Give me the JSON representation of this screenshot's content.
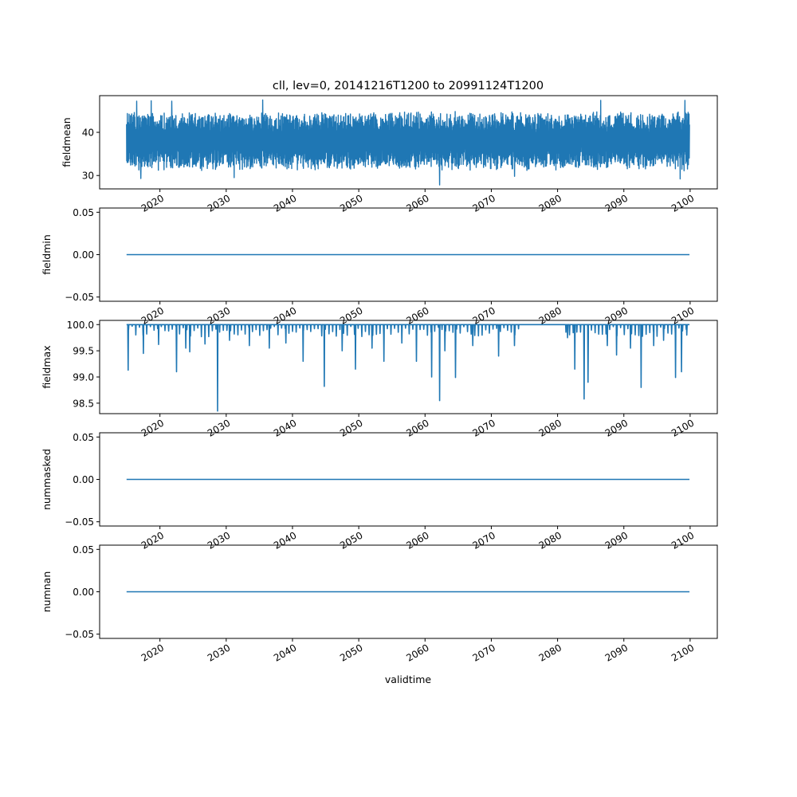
{
  "figure": {
    "title": "cll, lev=0, 20141216T1200 to 20991124T1200",
    "xlabel": "validtime"
  },
  "chart_data": {
    "type": "line",
    "title": "cll, lev=0, 20141216T1200 to 20991124T1200",
    "xlabel": "validtime",
    "x_range": [
      "2014-12-16T12:00",
      "2099-11-24T12:00"
    ],
    "x_axis_lim": [
      2010.9,
      2104.1
    ],
    "x_tick_labels": [
      "2020",
      "2030",
      "2040",
      "2050",
      "2060",
      "2070",
      "2080",
      "2090",
      "2100"
    ],
    "x_tick_values": [
      2020,
      2030,
      2040,
      2050,
      2060,
      2070,
      2080,
      2090,
      2100
    ],
    "color": "#1f77b4",
    "grid": false,
    "panels": [
      {
        "name": "fieldmean",
        "ylabel": "fieldmean",
        "ylim": [
          26.9,
          48.5
        ],
        "yticks": [
          30,
          40
        ],
        "ytick_labels": [
          "30",
          "40"
        ],
        "series_kind": "noisy",
        "typical_range": [
          32,
          44
        ],
        "extremes": [
          {
            "x": 2016.5,
            "y": 47.2
          },
          {
            "x": 2018.7,
            "y": 47.3
          },
          {
            "x": 2021.8,
            "y": 47.2
          },
          {
            "x": 2035.5,
            "y": 47.5
          },
          {
            "x": 2086.5,
            "y": 47.4
          },
          {
            "x": 2099.2,
            "y": 47.4
          },
          {
            "x": 2017.1,
            "y": 29.3
          },
          {
            "x": 2031.2,
            "y": 29.5
          },
          {
            "x": 2062.2,
            "y": 27.8
          },
          {
            "x": 2073.5,
            "y": 29.8
          },
          {
            "x": 2098.5,
            "y": 29.2
          },
          {
            "x": 2099.6,
            "y": 31.5
          }
        ]
      },
      {
        "name": "fieldmin",
        "ylabel": "fieldmin",
        "ylim": [
          -0.055,
          0.055
        ],
        "yticks": [
          -0.05,
          0.0,
          0.05
        ],
        "ytick_labels": [
          "−0.05",
          "0.00",
          "0.05"
        ],
        "series_kind": "constant",
        "constant_value": 0.0
      },
      {
        "name": "fieldmax",
        "ylabel": "fieldmax",
        "ylim": [
          98.3,
          100.08
        ],
        "yticks": [
          98.5,
          99.0,
          99.5,
          100.0
        ],
        "ytick_labels": [
          "98.5",
          "99.0",
          "99.5",
          "100.0"
        ],
        "series_kind": "dips",
        "baseline": 100.0,
        "dips": [
          {
            "x": 2015.2,
            "y": 99.13
          },
          {
            "x": 2017.5,
            "y": 99.45
          },
          {
            "x": 2019.8,
            "y": 99.62
          },
          {
            "x": 2022.5,
            "y": 99.1
          },
          {
            "x": 2023.9,
            "y": 99.55
          },
          {
            "x": 2024.5,
            "y": 99.48
          },
          {
            "x": 2026.8,
            "y": 99.63
          },
          {
            "x": 2028.7,
            "y": 98.35
          },
          {
            "x": 2030.5,
            "y": 99.7
          },
          {
            "x": 2033.5,
            "y": 99.6
          },
          {
            "x": 2036.5,
            "y": 99.55
          },
          {
            "x": 2039.0,
            "y": 99.65
          },
          {
            "x": 2041.6,
            "y": 99.3
          },
          {
            "x": 2044.8,
            "y": 98.82
          },
          {
            "x": 2047.5,
            "y": 99.5
          },
          {
            "x": 2049.5,
            "y": 99.15
          },
          {
            "x": 2052.0,
            "y": 99.55
          },
          {
            "x": 2053.8,
            "y": 99.3
          },
          {
            "x": 2056.5,
            "y": 99.65
          },
          {
            "x": 2058.7,
            "y": 99.3
          },
          {
            "x": 2061.0,
            "y": 99.0
          },
          {
            "x": 2062.2,
            "y": 98.55
          },
          {
            "x": 2063.0,
            "y": 99.5
          },
          {
            "x": 2064.6,
            "y": 98.99
          },
          {
            "x": 2067.2,
            "y": 99.6
          },
          {
            "x": 2071.1,
            "y": 99.4
          },
          {
            "x": 2073.5,
            "y": 99.6
          },
          {
            "x": 2081.5,
            "y": 99.75
          },
          {
            "x": 2082.6,
            "y": 99.15
          },
          {
            "x": 2084.0,
            "y": 98.58
          },
          {
            "x": 2084.6,
            "y": 98.9
          },
          {
            "x": 2087.5,
            "y": 99.6
          },
          {
            "x": 2088.9,
            "y": 99.42
          },
          {
            "x": 2091.0,
            "y": 99.55
          },
          {
            "x": 2092.6,
            "y": 98.8
          },
          {
            "x": 2094.5,
            "y": 99.6
          },
          {
            "x": 2096.0,
            "y": 99.7
          },
          {
            "x": 2097.8,
            "y": 98.99
          },
          {
            "x": 2098.7,
            "y": 99.1
          },
          {
            "x": 2099.5,
            "y": 99.8
          }
        ]
      },
      {
        "name": "nummasked",
        "ylabel": "nummasked",
        "ylim": [
          -0.055,
          0.055
        ],
        "yticks": [
          -0.05,
          0.0,
          0.05
        ],
        "ytick_labels": [
          "−0.05",
          "0.00",
          "0.05"
        ],
        "series_kind": "constant",
        "constant_value": 0.0
      },
      {
        "name": "numnan",
        "ylabel": "numnan",
        "ylim": [
          -0.055,
          0.055
        ],
        "yticks": [
          -0.05,
          0.0,
          0.05
        ],
        "ytick_labels": [
          "−0.05",
          "0.00",
          "0.05"
        ],
        "series_kind": "constant",
        "constant_value": 0.0
      }
    ]
  }
}
